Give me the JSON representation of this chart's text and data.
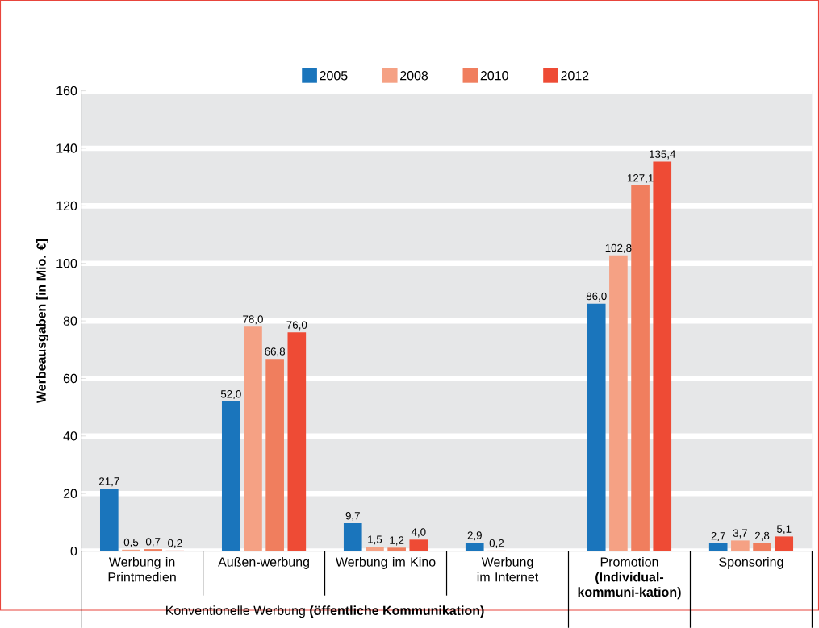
{
  "chart_data": {
    "type": "bar",
    "ylabel": "Werbeausgaben [in Mio. €]",
    "categories": [
      "Werbung in Printmedien",
      "Außen-werbung",
      "Werbung im Kino",
      "Werbung im Internet",
      "Promotion **(Individual-kommuni-kation)**",
      "Sponsoring"
    ],
    "series": [
      {
        "name": "2005",
        "color": "#1a75bc",
        "values": [
          21.7,
          52.0,
          9.7,
          2.9,
          86.0,
          2.7
        ],
        "value_labels": [
          "21,7",
          "52,0",
          "9,7",
          "2,9",
          "86,0",
          "2,7"
        ]
      },
      {
        "name": "2008",
        "color": "#f5a184",
        "values": [
          0.5,
          78.0,
          1.5,
          0.2,
          102.8,
          3.7
        ],
        "value_labels": [
          "0,5",
          "78,0",
          "1,5",
          "0,2",
          "102,8",
          "3,7"
        ]
      },
      {
        "name": "2010",
        "color": "#f07e5e",
        "values": [
          0.7,
          66.8,
          1.2,
          null,
          127.1,
          2.8
        ],
        "value_labels": [
          "0,7",
          "66,8",
          "1,2",
          null,
          "127,1",
          "2,8"
        ]
      },
      {
        "name": "2012",
        "color": "#ee4b35",
        "values": [
          0.2,
          76.0,
          4.0,
          null,
          135.4,
          5.1
        ],
        "value_labels": [
          "0,2",
          "76,0",
          "4,0",
          null,
          "135,4",
          "5,1"
        ]
      }
    ],
    "ylim": [
      0,
      160
    ],
    "yticks": [
      0,
      20,
      40,
      60,
      80,
      100,
      120,
      140,
      160
    ],
    "grid": "y",
    "legend": "top",
    "annotations": [
      "Konventionelle Werbung **(öffentliche Kommunikation)**"
    ]
  }
}
